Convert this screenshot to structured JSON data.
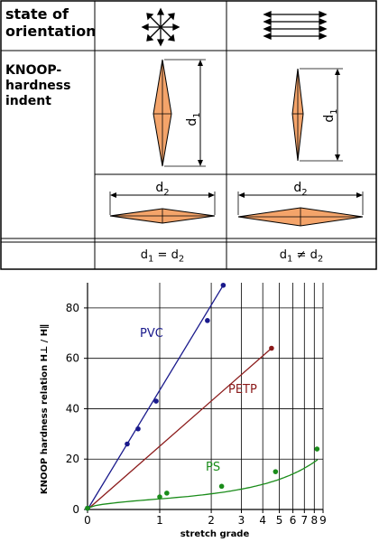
{
  "table": {
    "row1_label": "state of orientation",
    "row2_label": "KNOOP-hardness indent",
    "d1_label": "d",
    "d1_sub": "1",
    "d2_label": "d",
    "d2_sub": "2",
    "eq_left": {
      "a": "d",
      "a_sub": "1",
      "op": " = ",
      "b": "d",
      "b_sub": "2"
    },
    "eq_right": {
      "a": "d",
      "a_sub": "1",
      "op": " ≠ ",
      "b": "d",
      "b_sub": "2"
    },
    "icons": {
      "left": "multi-direction-arrows-icon",
      "right": "parallel-arrows-icon"
    }
  },
  "chart_data": {
    "type": "scatter",
    "title": "",
    "xlabel": "stretch grade",
    "ylabel": "KNOOP hardness relation H⊥ / H∥",
    "xscale": "log",
    "xticks": [
      0,
      1,
      2,
      3,
      4,
      5,
      6,
      7,
      8,
      9
    ],
    "yticks": [
      0,
      20,
      40,
      60,
      80
    ],
    "ylim": [
      0,
      90
    ],
    "grid": true,
    "series": [
      {
        "name": "PVC",
        "color": "#1a1a8c",
        "points": [
          [
            0,
            0.5
          ],
          [
            0.55,
            26
          ],
          [
            0.7,
            32
          ],
          [
            0.95,
            43
          ],
          [
            1.9,
            75
          ],
          [
            2.35,
            89
          ]
        ],
        "fit": "line"
      },
      {
        "name": "PETP",
        "color": "#8b1a1a",
        "points": [
          [
            4.5,
            64
          ]
        ],
        "fit": "line"
      },
      {
        "name": "PS",
        "color": "#1a8c1a",
        "points": [
          [
            0,
            0.5
          ],
          [
            1,
            5
          ],
          [
            1.1,
            6.5
          ],
          [
            2.3,
            9.2
          ],
          [
            4.75,
            15
          ],
          [
            8.3,
            24
          ]
        ],
        "fit": "curve"
      }
    ]
  }
}
